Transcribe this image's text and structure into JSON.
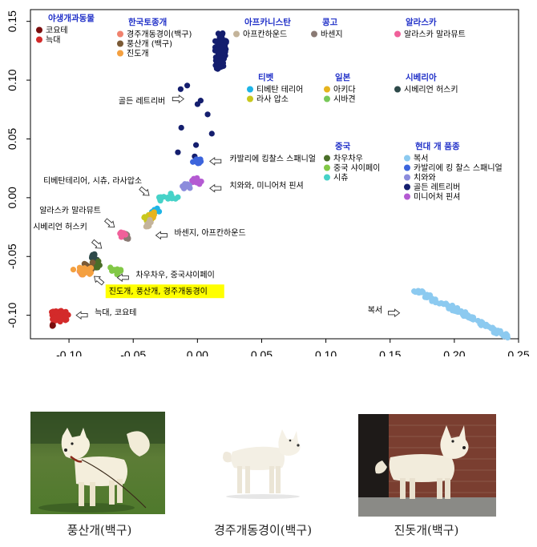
{
  "chart_data": {
    "type": "scatter",
    "xlim": [
      -0.13,
      0.25
    ],
    "ylim": [
      -0.12,
      0.16
    ],
    "xticks": [
      -0.1,
      -0.05,
      0.0,
      0.05,
      0.1,
      0.15,
      0.2,
      0.25
    ],
    "yticks": [
      0.15,
      0.1,
      0.05,
      0.0,
      -0.05,
      -0.1
    ],
    "xtick_labels": [
      "-0.10",
      "-0.05",
      "0.00",
      "0.05",
      "0.10",
      "0.15",
      "0.20",
      "0.25"
    ],
    "ytick_labels": [
      "0.15",
      "0.10",
      "0.05",
      "0.00",
      "-0.05",
      "-0.10"
    ],
    "grid": false,
    "legend_groups": [
      {
        "title": "야생개과동물",
        "items": [
          {
            "name": "코요테",
            "color": "#7a0d0d"
          },
          {
            "name": "늑대",
            "color": "#d32a2a"
          }
        ]
      },
      {
        "title": "한국토종개",
        "items": [
          {
            "name": "경주개동경이(백구)",
            "color": "#f0826e"
          },
          {
            "name": "풍산개 (백구)",
            "color": "#7a5a36"
          },
          {
            "name": "진도개",
            "color": "#f4a040"
          }
        ]
      },
      {
        "title": "아프카니스탄",
        "items": [
          {
            "name": "아프칸하운드",
            "color": "#c4b49a"
          }
        ]
      },
      {
        "title": "콩고",
        "items": [
          {
            "name": "바센지",
            "color": "#8a7a74"
          }
        ]
      },
      {
        "title": "알라스카",
        "items": [
          {
            "name": "알라스카 말라뮤트",
            "color": "#f0609a"
          }
        ]
      },
      {
        "title": "티벳",
        "items": [
          {
            "name": "티베탄 테리어",
            "color": "#1eb4e6"
          },
          {
            "name": "라사 압소",
            "color": "#c8c81e"
          }
        ]
      },
      {
        "title": "일본",
        "items": [
          {
            "name": "아키다",
            "color": "#e6b41e"
          },
          {
            "name": "시바견",
            "color": "#78c85a"
          }
        ]
      },
      {
        "title": "시베리아",
        "items": [
          {
            "name": "시베리언 허스키",
            "color": "#2e4a4a"
          }
        ]
      },
      {
        "title": "중국",
        "items": [
          {
            "name": "차우차우",
            "color": "#4a6e28"
          },
          {
            "name": "중국 샤이페이",
            "color": "#82c846"
          },
          {
            "name": "시츄",
            "color": "#46d2c8"
          }
        ]
      },
      {
        "title": "현대 개 품종",
        "items": [
          {
            "name": "복서",
            "color": "#8ccaf0"
          },
          {
            "name": "카발리에 킹 찰스 스패니얼",
            "color": "#3c64dc"
          },
          {
            "name": "치와와",
            "color": "#8c8cdc"
          },
          {
            "name": "골든 레트리버",
            "color": "#141e6e"
          },
          {
            "name": "미니어처 핀셔",
            "color": "#b45ad2"
          }
        ]
      }
    ],
    "clusters": [
      {
        "name": "골든 레트리버",
        "color": "#141e6e",
        "cx": 0.018,
        "cy": 0.125,
        "sx": 0.004,
        "sy": 0.015,
        "n": 130
      },
      {
        "name": "골든 레트리버",
        "color": "#141e6e",
        "cx": -0.006,
        "cy": 0.065,
        "sx": 0.012,
        "sy": 0.03,
        "n": 10
      },
      {
        "name": "카발리에 킹 찰스 스패니얼",
        "color": "#3c64dc",
        "cx": 0.0,
        "cy": 0.031,
        "sx": 0.003,
        "sy": 0.002,
        "n": 18
      },
      {
        "name": "미니어처 핀셔",
        "color": "#b45ad2",
        "cx": 0.0,
        "cy": 0.014,
        "sx": 0.004,
        "sy": 0.002,
        "n": 14
      },
      {
        "name": "치와와",
        "color": "#8c8cdc",
        "cx": -0.009,
        "cy": 0.01,
        "sx": 0.004,
        "sy": 0.003,
        "n": 12
      },
      {
        "name": "시츄",
        "color": "#46d2c8",
        "cx": -0.023,
        "cy": 0.0,
        "sx": 0.007,
        "sy": 0.004,
        "n": 16
      },
      {
        "name": "라사 압소",
        "color": "#c8c81e",
        "cx": -0.038,
        "cy": -0.018,
        "sx": 0.003,
        "sy": 0.003,
        "n": 8
      },
      {
        "name": "티베탄 테리어",
        "color": "#1eb4e6",
        "cx": -0.033,
        "cy": -0.012,
        "sx": 0.004,
        "sy": 0.003,
        "n": 8
      },
      {
        "name": "아키다",
        "color": "#e6b41e",
        "cx": -0.035,
        "cy": -0.015,
        "sx": 0.003,
        "sy": 0.003,
        "n": 6
      },
      {
        "name": "아프칸하운드",
        "color": "#c4b49a",
        "cx": -0.039,
        "cy": -0.022,
        "sx": 0.003,
        "sy": 0.003,
        "n": 8
      },
      {
        "name": "바센지",
        "color": "#8a7a74",
        "cx": -0.055,
        "cy": -0.033,
        "sx": 0.003,
        "sy": 0.003,
        "n": 12
      },
      {
        "name": "알라스카 말라뮤트",
        "color": "#f0609a",
        "cx": -0.058,
        "cy": -0.031,
        "sx": 0.003,
        "sy": 0.002,
        "n": 8
      },
      {
        "name": "시베리언 허스키",
        "color": "#2e4a4a",
        "cx": -0.08,
        "cy": -0.05,
        "sx": 0.003,
        "sy": 0.003,
        "n": 8
      },
      {
        "name": "차우차우",
        "color": "#4a6e28",
        "cx": -0.078,
        "cy": -0.058,
        "sx": 0.004,
        "sy": 0.004,
        "n": 10
      },
      {
        "name": "중국 샤이페이",
        "color": "#82c846",
        "cx": -0.065,
        "cy": -0.062,
        "sx": 0.006,
        "sy": 0.003,
        "n": 12
      },
      {
        "name": "풍산개 (백구)",
        "color": "#7a5a36",
        "cx": -0.085,
        "cy": -0.059,
        "sx": 0.004,
        "sy": 0.003,
        "n": 12
      },
      {
        "name": "경주개동경이(백구)",
        "color": "#f0826e",
        "cx": -0.09,
        "cy": -0.063,
        "sx": 0.004,
        "sy": 0.003,
        "n": 16
      },
      {
        "name": "진도개",
        "color": "#f4a040",
        "cx": -0.088,
        "cy": -0.062,
        "sx": 0.006,
        "sy": 0.003,
        "n": 26
      },
      {
        "name": "늑대",
        "color": "#d32a2a",
        "cx": -0.108,
        "cy": -0.101,
        "sx": 0.006,
        "sy": 0.005,
        "n": 60
      },
      {
        "name": "코요테",
        "color": "#7a0d0d",
        "cx": -0.113,
        "cy": -0.108,
        "sx": 0.001,
        "sy": 0.001,
        "n": 3
      },
      {
        "name": "복서",
        "color": "#8ccaf0",
        "cx": 0.205,
        "cy": -0.098,
        "sx": 0.018,
        "sy": 0.011,
        "n": 110,
        "line": true
      }
    ],
    "annotations": [
      {
        "text": "골든 레트리버",
        "x": -0.025,
        "y": 0.08,
        "ax": -0.015,
        "ay": 0.084,
        "dir": "right"
      },
      {
        "text": "카발리에 킹찰스 스패니얼",
        "x": 0.025,
        "y": 0.031,
        "ax": 0.014,
        "ay": 0.031,
        "dir": "left"
      },
      {
        "text": "치와와, 미니어처 핀셔",
        "x": 0.025,
        "y": 0.008,
        "ax": 0.014,
        "ay": 0.008,
        "dir": "left"
      },
      {
        "text": "티베탄테리어, 시츄, 라사압소",
        "x": -0.12,
        "y": 0.012,
        "ax": -0.041,
        "ay": 0.005,
        "dir": "down-right"
      },
      {
        "text": "알라스카 말라뮤트",
        "x": -0.123,
        "y": -0.013,
        "ax": -0.068,
        "ay": -0.022,
        "dir": "down-right"
      },
      {
        "text": "시베리언 허스키",
        "x": -0.128,
        "y": -0.027,
        "ax": -0.078,
        "ay": -0.04,
        "dir": "down-right"
      },
      {
        "text": "바센지, 아프칸하운드",
        "x": -0.018,
        "y": -0.032,
        "ax": -0.028,
        "ay": -0.032,
        "dir": "left"
      },
      {
        "text": "차우차우, 중국샤이페이",
        "x": -0.048,
        "y": -0.068,
        "ax": -0.058,
        "ay": -0.068,
        "dir": "left"
      },
      {
        "text": "늑대, 코요테",
        "x": -0.08,
        "y": -0.1,
        "ax": -0.09,
        "ay": -0.1,
        "dir": "left"
      },
      {
        "text": "복서",
        "x": 0.144,
        "y": -0.098,
        "ax": 0.153,
        "ay": -0.098,
        "dir": "right"
      },
      {
        "text": "진도개, 풍산개, 경주개동경이",
        "x": -0.069,
        "y": -0.082,
        "ax": -0.077,
        "ay": -0.07,
        "dir": "up-left",
        "highlight": "#ffff00"
      }
    ]
  },
  "photos": [
    {
      "caption": "풍산개(백구)"
    },
    {
      "caption": "경주개동경이(백구)"
    },
    {
      "caption": "진돗개(백구)"
    }
  ]
}
